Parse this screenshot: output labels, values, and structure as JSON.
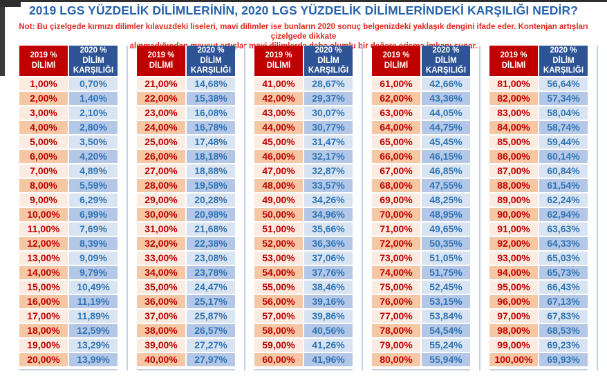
{
  "colors": {
    "title_blue": "#2563ae",
    "note_red": "#e02a1e",
    "header_red": "#c00000",
    "header_blue": "#2f5496",
    "text_red": "#c00000",
    "text_blue": "#2e75b6",
    "cell_red_light": "#fcebe0",
    "cell_red_dark": "#f6c7a4",
    "cell_blue_light": "#d9e4f2",
    "cell_blue_dark": "#b4c7e7",
    "rule_color": "#c3cfe3"
  },
  "chart_data": {
    "type": "table",
    "title": "2019 LGS YÜZDELİK DİLİMLERİNİN, 2020 LGS YÜZDELİK DİLİMLERİNDEKİ KARŞILIĞI NEDİR?",
    "note": "Not: Bu çizelgede kırmızı dilimler kılavuzdeki liseleri, mavi dilimler ise bunların 2020 sonuç belgenizdeki yaklaşık dengini ifade eder. Kontenjan artışları çizelgede dikkate\nalınmadığından mevcut artışlar mavi dilimlerde daha olumlu bir değere erişme imkanı sunar.",
    "col_2019": "2019 %\nDİLİMİ",
    "col_2020": "2020 % DİLİM\nKARŞILIĞI",
    "groups": [
      {
        "rows": [
          [
            "1,00%",
            "0,70%"
          ],
          [
            "2,00%",
            "1,40%"
          ],
          [
            "3,00%",
            "2,10%"
          ],
          [
            "4,00%",
            "2,80%"
          ],
          [
            "5,00%",
            "3,50%"
          ],
          [
            "6,00%",
            "4,20%"
          ],
          [
            "7,00%",
            "4,89%"
          ],
          [
            "8,00%",
            "5,59%"
          ],
          [
            "9,00%",
            "6,29%"
          ],
          [
            "10,00%",
            "6,99%"
          ],
          [
            "11,00%",
            "7,69%"
          ],
          [
            "12,00%",
            "8,39%"
          ],
          [
            "13,00%",
            "9,09%"
          ],
          [
            "14,00%",
            "9,79%"
          ],
          [
            "15,00%",
            "10,49%"
          ],
          [
            "16,00%",
            "11,19%"
          ],
          [
            "17,00%",
            "11,89%"
          ],
          [
            "18,00%",
            "12,59%"
          ],
          [
            "19,00%",
            "13,29%"
          ],
          [
            "20,00%",
            "13,99%"
          ]
        ]
      },
      {
        "rows": [
          [
            "21,00%",
            "14,68%"
          ],
          [
            "22,00%",
            "15,38%"
          ],
          [
            "23,00%",
            "16,08%"
          ],
          [
            "24,00%",
            "16,78%"
          ],
          [
            "25,00%",
            "17,48%"
          ],
          [
            "26,00%",
            "18,18%"
          ],
          [
            "27,00%",
            "18,88%"
          ],
          [
            "28,00%",
            "19,58%"
          ],
          [
            "29,00%",
            "20,28%"
          ],
          [
            "30,00%",
            "20,98%"
          ],
          [
            "31,00%",
            "21,68%"
          ],
          [
            "32,00%",
            "22,38%"
          ],
          [
            "33,00%",
            "23,08%"
          ],
          [
            "34,00%",
            "23,78%"
          ],
          [
            "35,00%",
            "24,47%"
          ],
          [
            "36,00%",
            "25,17%"
          ],
          [
            "37,00%",
            "25,87%"
          ],
          [
            "38,00%",
            "26,57%"
          ],
          [
            "39,00%",
            "27,27%"
          ],
          [
            "40,00%",
            "27,97%"
          ]
        ]
      },
      {
        "rows": [
          [
            "41,00%",
            "28,67%"
          ],
          [
            "42,00%",
            "29,37%"
          ],
          [
            "43,00%",
            "30,07%"
          ],
          [
            "44,00%",
            "30,77%"
          ],
          [
            "45,00%",
            "31,47%"
          ],
          [
            "46,00%",
            "32,17%"
          ],
          [
            "47,00%",
            "32,87%"
          ],
          [
            "48,00%",
            "33,57%"
          ],
          [
            "49,00%",
            "34,26%"
          ],
          [
            "50,00%",
            "34,96%"
          ],
          [
            "51,00%",
            "35,66%"
          ],
          [
            "52,00%",
            "36,36%"
          ],
          [
            "53,00%",
            "37,06%"
          ],
          [
            "54,00%",
            "37,76%"
          ],
          [
            "55,00%",
            "38,46%"
          ],
          [
            "56,00%",
            "39,16%"
          ],
          [
            "57,00%",
            "39,86%"
          ],
          [
            "58,00%",
            "40,56%"
          ],
          [
            "59,00%",
            "41,26%"
          ],
          [
            "60,00%",
            "41,96%"
          ]
        ]
      },
      {
        "rows": [
          [
            "61,00%",
            "42,66%"
          ],
          [
            "62,00%",
            "43,36%"
          ],
          [
            "63,00%",
            "44,05%"
          ],
          [
            "64,00%",
            "44,75%"
          ],
          [
            "65,00%",
            "45,45%"
          ],
          [
            "66,00%",
            "46,15%"
          ],
          [
            "67,00%",
            "46,85%"
          ],
          [
            "68,00%",
            "47,55%"
          ],
          [
            "69,00%",
            "48,25%"
          ],
          [
            "70,00%",
            "48,95%"
          ],
          [
            "71,00%",
            "49,65%"
          ],
          [
            "72,00%",
            "50,35%"
          ],
          [
            "73,00%",
            "51,05%"
          ],
          [
            "74,00%",
            "51,75%"
          ],
          [
            "75,00%",
            "52,45%"
          ],
          [
            "76,00%",
            "53,15%"
          ],
          [
            "77,00%",
            "53,84%"
          ],
          [
            "78,00%",
            "54,54%"
          ],
          [
            "79,00%",
            "55,24%"
          ],
          [
            "80,00%",
            "55,94%"
          ]
        ]
      },
      {
        "rows": [
          [
            "81,00%",
            "56,64%"
          ],
          [
            "82,00%",
            "57,34%"
          ],
          [
            "83,00%",
            "58,04%"
          ],
          [
            "84,00%",
            "58,74%"
          ],
          [
            "85,00%",
            "59,44%"
          ],
          [
            "86,00%",
            "60,14%"
          ],
          [
            "87,00%",
            "60,84%"
          ],
          [
            "88,00%",
            "61,54%"
          ],
          [
            "89,00%",
            "62,24%"
          ],
          [
            "90,00%",
            "62,94%"
          ],
          [
            "91,00%",
            "63,63%"
          ],
          [
            "92,00%",
            "64,33%"
          ],
          [
            "93,00%",
            "65,03%"
          ],
          [
            "94,00%",
            "65,73%"
          ],
          [
            "95,00%",
            "66,43%"
          ],
          [
            "96,00%",
            "67,13%"
          ],
          [
            "97,00%",
            "67,83%"
          ],
          [
            "98,00%",
            "68,53%"
          ],
          [
            "99,00%",
            "69,23%"
          ],
          [
            "100,00%",
            "69,93%"
          ]
        ]
      }
    ]
  }
}
